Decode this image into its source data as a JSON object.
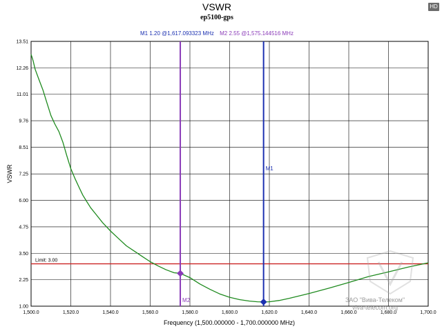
{
  "badge": "HD",
  "watermark": {
    "line1": "ЗАО \"Вива-Телеком\"",
    "line2": "viva-telecom.org"
  },
  "chart_data": {
    "type": "line",
    "title": "VSWR",
    "subtitle": "ep5100-gps",
    "xlabel": "Frequency (1,500.000000 - 1,700.000000 MHz)",
    "ylabel": "VSWR",
    "xlim": [
      1500,
      1700
    ],
    "ylim": [
      1.0,
      13.51
    ],
    "grid": true,
    "x_ticks": [
      1500,
      1520,
      1540,
      1560,
      1580,
      1600,
      1620,
      1640,
      1660,
      1680,
      1700
    ],
    "x_tick_labels": [
      "1,500.0",
      "1,520.0",
      "1,540.0",
      "1,560.0",
      "1,580.0",
      "1,600.0",
      "1,620.0",
      "1,640.0",
      "1,660.0",
      "1,680.0",
      "1,700.0"
    ],
    "y_ticks": [
      1.0,
      2.25,
      3.5,
      4.75,
      6.0,
      7.25,
      8.51,
      9.76,
      11.01,
      12.26,
      13.51
    ],
    "y_tick_labels": [
      "1.00",
      "2.25",
      "3.50",
      "4.75",
      "6.00",
      "7.25",
      "8.51",
      "9.76",
      "11.01",
      "12.26",
      "13.51"
    ],
    "series": [
      {
        "color": "#1e8a1e",
        "x": [
          1500,
          1501,
          1502,
          1504,
          1506,
          1508,
          1510,
          1512,
          1514,
          1516,
          1518,
          1520,
          1522,
          1524,
          1526,
          1528,
          1530,
          1533,
          1536,
          1540,
          1544,
          1548,
          1552,
          1556,
          1560,
          1564,
          1568,
          1572,
          1575.14,
          1580,
          1585,
          1590,
          1595,
          1600,
          1605,
          1610,
          1614,
          1617.09,
          1620,
          1625,
          1630,
          1640,
          1650,
          1660,
          1670,
          1680,
          1690,
          1700
        ],
        "y": [
          12.9,
          12.6,
          12.2,
          11.7,
          11.2,
          10.6,
          10.0,
          9.6,
          9.25,
          8.75,
          8.1,
          7.5,
          7.05,
          6.65,
          6.25,
          5.95,
          5.65,
          5.3,
          4.95,
          4.55,
          4.2,
          3.85,
          3.6,
          3.35,
          3.1,
          2.9,
          2.72,
          2.58,
          2.55,
          2.35,
          2.05,
          1.8,
          1.58,
          1.42,
          1.31,
          1.24,
          1.21,
          1.2,
          1.21,
          1.27,
          1.37,
          1.6,
          1.85,
          2.12,
          2.4,
          2.62,
          2.85,
          3.05
        ]
      }
    ],
    "limit_line": {
      "label": "Limit: 3.00",
      "value": 3.0,
      "color": "#cc2222"
    },
    "markers": [
      {
        "name": "M1",
        "x": 1617.093323,
        "y": 1.2,
        "color": "#1a2fb0",
        "readout": "M1  1.20 @1,617.093323 MHz"
      },
      {
        "name": "M2",
        "x": 1575.144516,
        "y": 2.55,
        "color": "#8a3ab8",
        "readout": "M2  2.55 @1,575.144516 MHz"
      }
    ]
  }
}
